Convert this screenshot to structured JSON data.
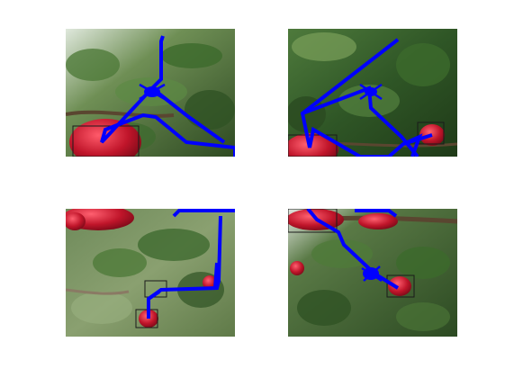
{
  "figure": {
    "background": "#ffffff",
    "path_color": "#0000ff",
    "box_color": "#1a1a1a",
    "fruit_color": "#c0152a",
    "panels": [
      {
        "id": "top-left",
        "content": "apple-tree-image",
        "has_bounding_box": true,
        "has_path": true,
        "has_marker": true
      },
      {
        "id": "top-right",
        "content": "apple-tree-image",
        "has_bounding_box": true,
        "has_path": true,
        "has_marker": true
      },
      {
        "id": "bottom-left",
        "content": "apple-tree-image",
        "has_bounding_box": true,
        "has_path": true,
        "has_marker": false
      },
      {
        "id": "bottom-right",
        "content": "apple-tree-image",
        "has_bounding_box": true,
        "has_path": true,
        "has_marker": true
      }
    ]
  }
}
